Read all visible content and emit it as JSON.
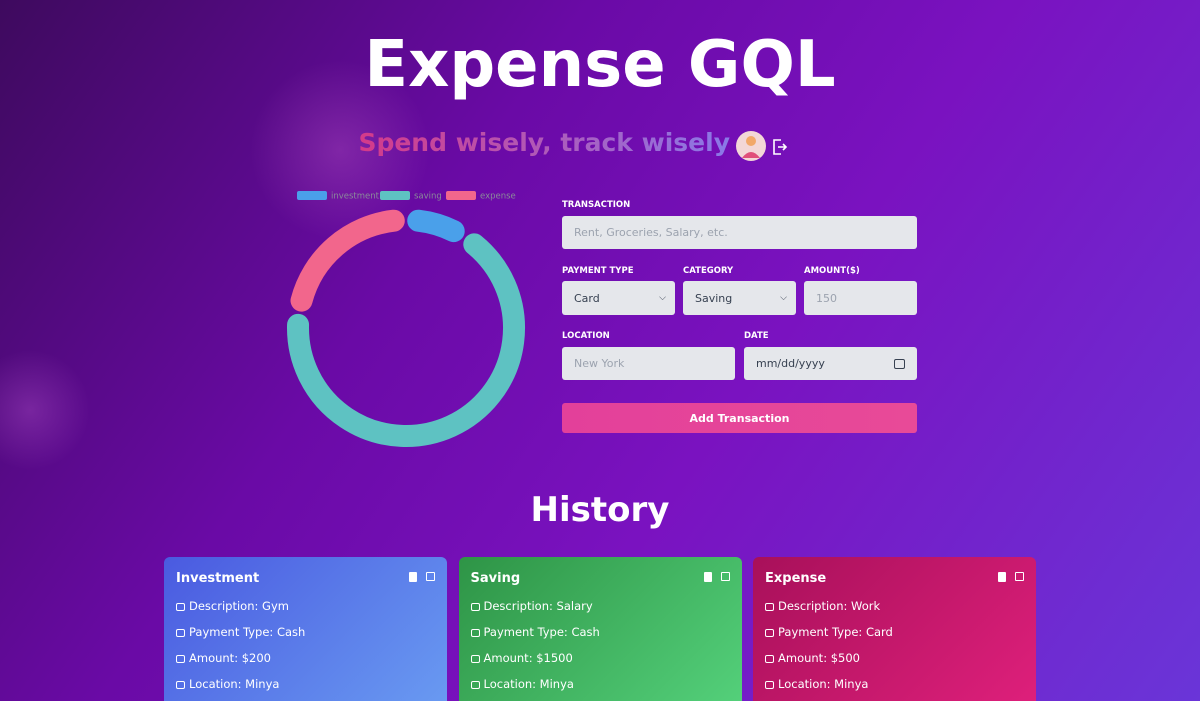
{
  "header": {
    "title": "Expense GQL",
    "subtitle": "Spend wisely, track wisely"
  },
  "chart_data": {
    "type": "doughnut",
    "categories": [
      "investment",
      "saving",
      "expense"
    ],
    "values": [
      200,
      1500,
      500
    ],
    "colors": [
      "#4aa0ea",
      "#5ec2c2",
      "#f2668c"
    ]
  },
  "form": {
    "transaction": {
      "label": "TRANSACTION",
      "placeholder": "Rent, Groceries, Salary, etc."
    },
    "payment_type": {
      "label": "PAYMENT TYPE",
      "value": "Card"
    },
    "category": {
      "label": "CATEGORY",
      "value": "Saving"
    },
    "amount": {
      "label": "AMOUNT($)",
      "placeholder": "150"
    },
    "location": {
      "label": "LOCATION",
      "placeholder": "New York"
    },
    "date": {
      "label": "DATE",
      "placeholder": "mm/dd/yyyy"
    },
    "button": "Add Transaction"
  },
  "history": {
    "title": "History",
    "cards": [
      {
        "title": "Investment",
        "lines": [
          "Description: Gym",
          "Payment Type: Cash",
          "Amount: $200",
          "Location: Minya"
        ]
      },
      {
        "title": "Saving",
        "lines": [
          "Description: Salary",
          "Payment Type: Cash",
          "Amount: $1500",
          "Location: Minya"
        ]
      },
      {
        "title": "Expense",
        "lines": [
          "Description: Work",
          "Payment Type: Card",
          "Amount: $500",
          "Location: Minya"
        ]
      }
    ]
  }
}
